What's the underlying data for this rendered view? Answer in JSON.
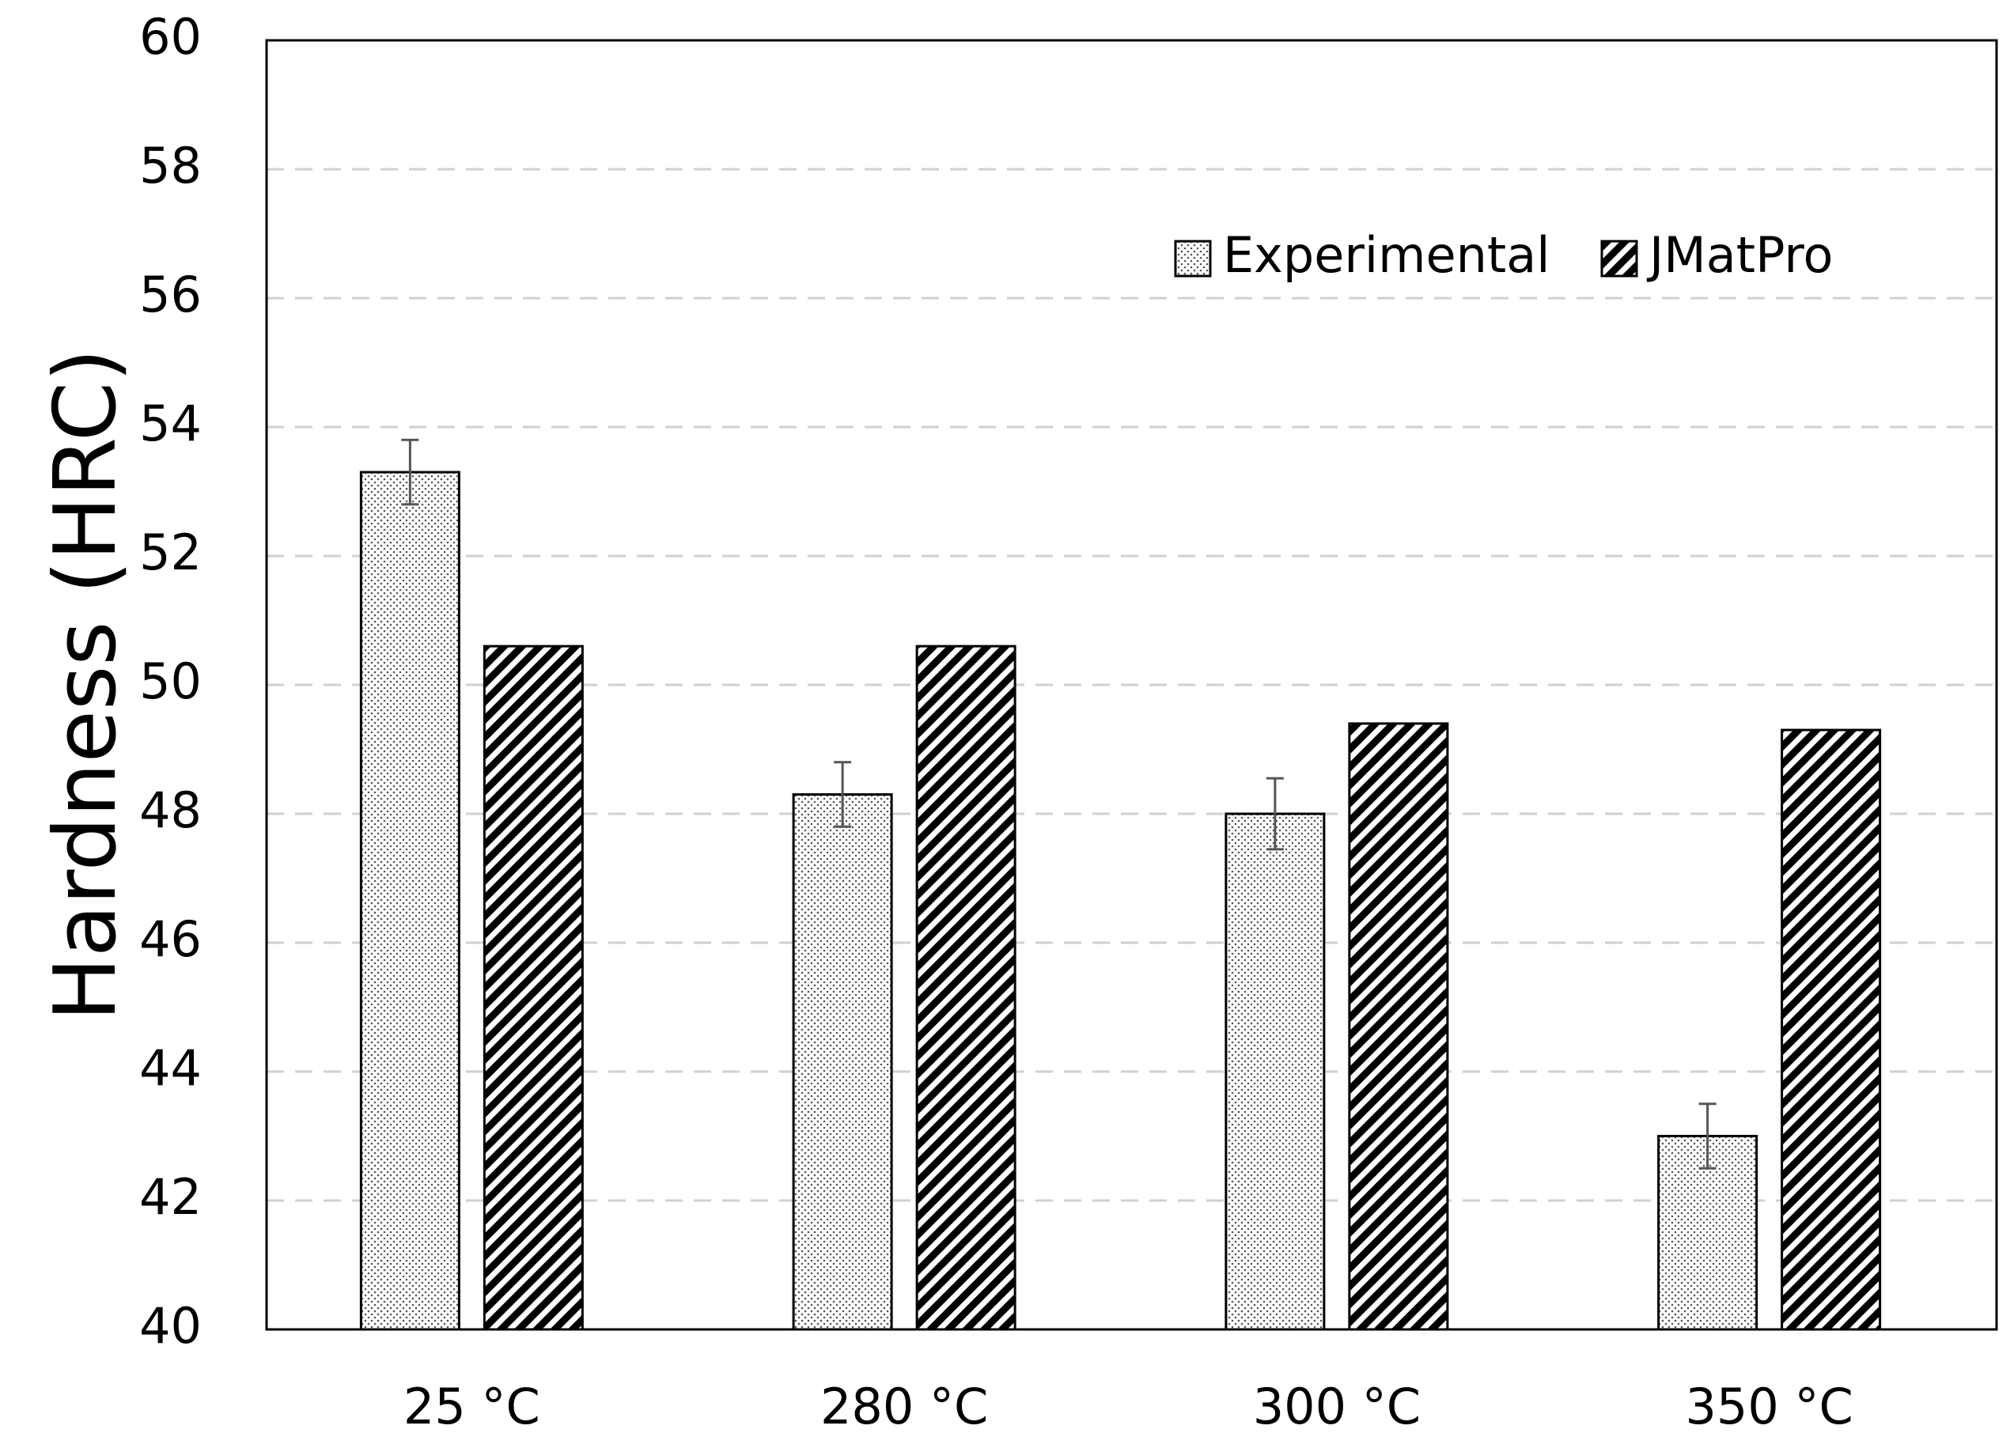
{
  "chart_data": {
    "type": "bar",
    "title": "",
    "xlabel": "",
    "ylabel": "Hardness (HRC)",
    "ylim": [
      40,
      60
    ],
    "yticks": [
      40,
      42,
      44,
      46,
      48,
      50,
      52,
      54,
      56,
      58,
      60
    ],
    "grid": true,
    "legend_position": "top-right",
    "categories": [
      "25 °C",
      "280 °C",
      "300 °C",
      "350 °C"
    ],
    "series": [
      {
        "name": "Experimental",
        "pattern": "dots",
        "values": [
          53.3,
          48.3,
          48.0,
          43.0
        ],
        "errors": [
          0.5,
          0.5,
          0.55,
          0.5
        ]
      },
      {
        "name": "JMatPro",
        "pattern": "hatch",
        "values": [
          50.6,
          50.6,
          49.4,
          49.3
        ]
      }
    ],
    "colors": {
      "bar_stroke": "#000000",
      "hatch": "#000000",
      "dots": "#555555",
      "grid": "#d0d0d0",
      "error_bar": "#555555"
    }
  }
}
